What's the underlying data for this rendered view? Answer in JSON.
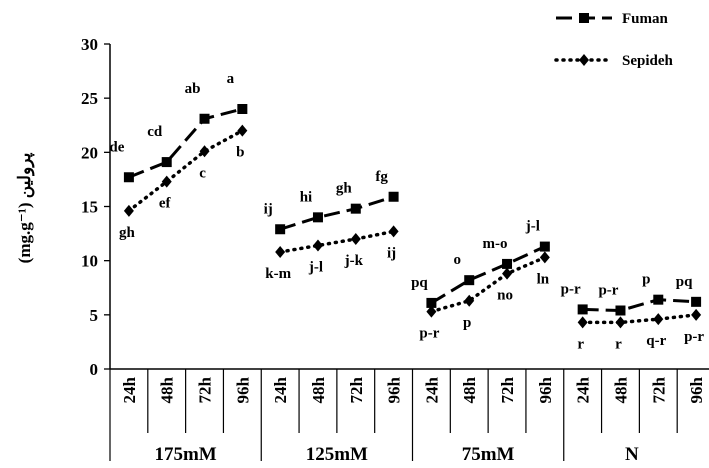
{
  "chart_data": {
    "type": "line",
    "ylabel": "(mg.g⁻¹) پرولین",
    "ylim": [
      0,
      30
    ],
    "yticks": [
      0,
      5,
      10,
      15,
      20,
      25,
      30
    ],
    "grid": false,
    "legend_position": "top-right",
    "categories": [
      "24h",
      "48h",
      "72h",
      "96h",
      "24h",
      "48h",
      "72h",
      "96h",
      "24h",
      "48h",
      "72h",
      "96h",
      "24h",
      "48h",
      "72h",
      "96h"
    ],
    "groups": [
      {
        "label": "175mM",
        "start": 0,
        "end": 3
      },
      {
        "label": "125mM",
        "start": 4,
        "end": 7
      },
      {
        "label": "75mM",
        "start": 8,
        "end": 11
      },
      {
        "label": "N",
        "start": 12,
        "end": 15
      }
    ],
    "series": [
      {
        "name": "Fuman",
        "marker": "square",
        "line": "dashed",
        "values": [
          17.7,
          19.1,
          23.1,
          24.0,
          12.9,
          14.0,
          14.8,
          15.9,
          6.1,
          8.2,
          9.7,
          11.3,
          5.5,
          5.4,
          6.4,
          6.2
        ],
        "letters": [
          "de",
          "cd",
          "ab",
          "a",
          "ij",
          "hi",
          "gh",
          "fg",
          "pq",
          "o",
          "m-o",
          "j-l",
          "p-r",
          "p-r",
          "p",
          "pq"
        ]
      },
      {
        "name": "Sepideh",
        "marker": "diamond",
        "line": "dotted",
        "values": [
          14.6,
          17.3,
          20.1,
          22.0,
          10.8,
          11.4,
          12.0,
          12.7,
          5.3,
          6.3,
          8.8,
          10.3,
          4.3,
          4.3,
          4.6,
          5.0
        ],
        "letters": [
          "gh",
          "ef",
          "c",
          "b",
          "k-m",
          "j-l",
          "j-k",
          "ij",
          "p-r",
          "p",
          "no",
          "ln",
          "r",
          "r",
          "q-r",
          "p-r"
        ]
      }
    ]
  }
}
